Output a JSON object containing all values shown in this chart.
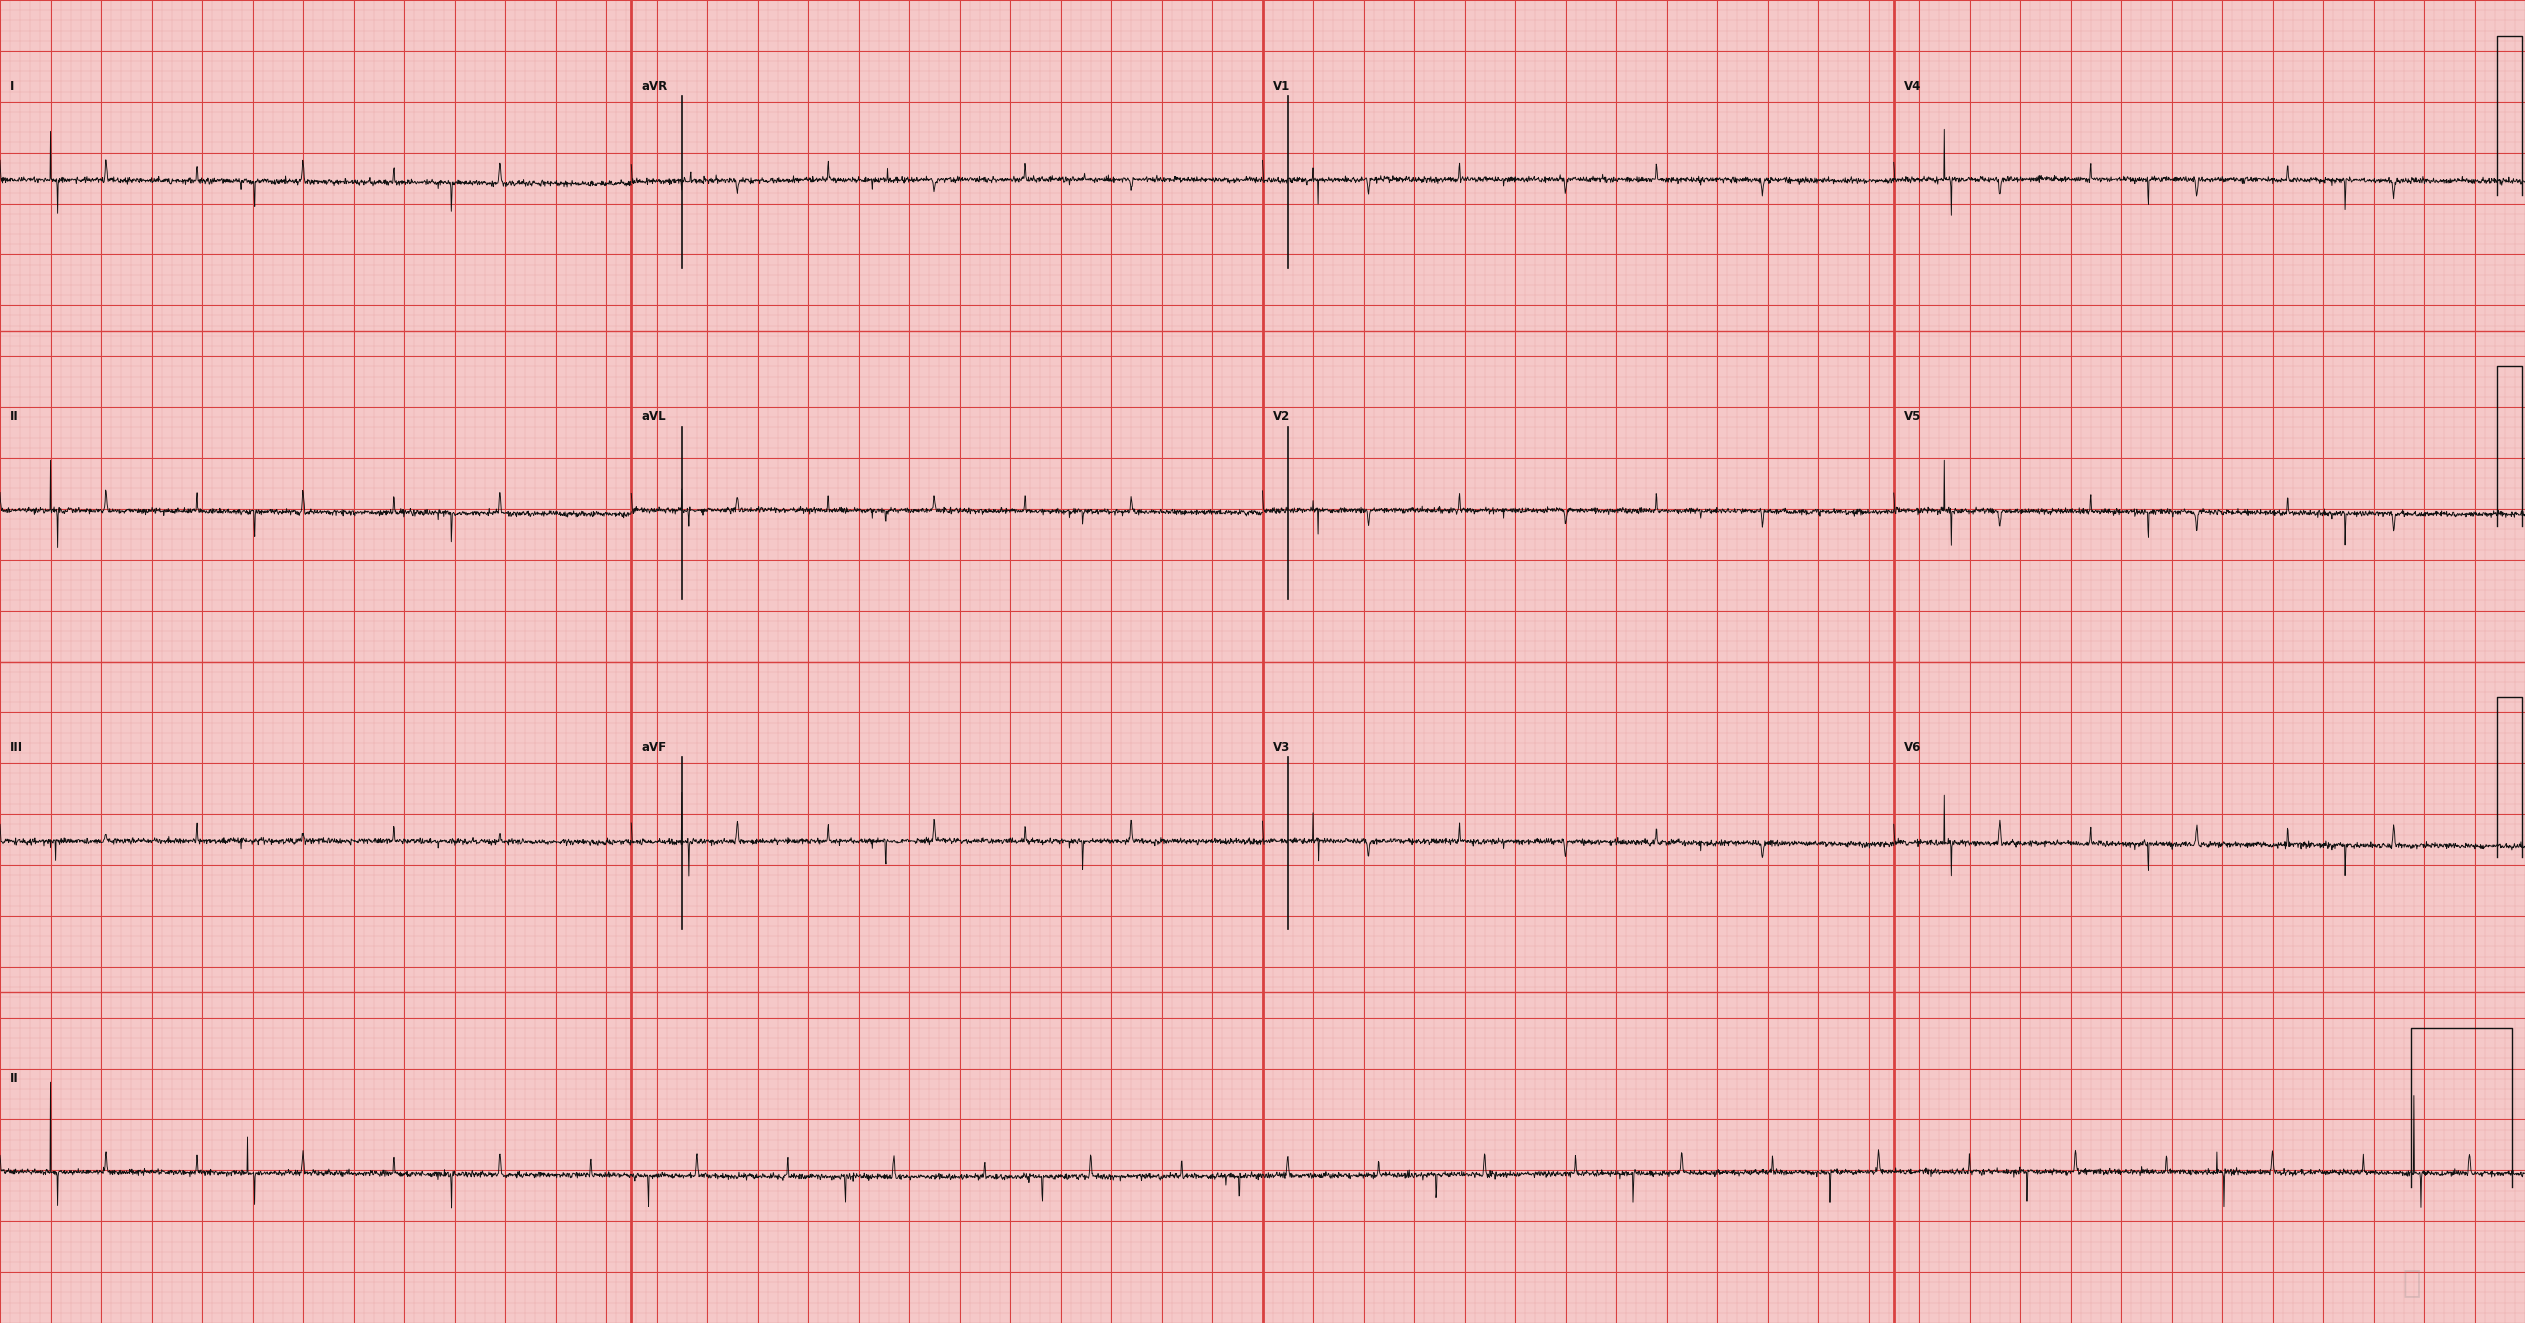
{
  "bg_color": "#f5c8c8",
  "grid_minor_color": "#eaacac",
  "grid_major_color": "#d94040",
  "ecg_color": "#111111",
  "label_color": "#111111",
  "fig_width": 25.25,
  "fig_height": 13.23,
  "dpi": 100,
  "leads_row0": [
    "I",
    "aVR",
    "V1",
    "V4"
  ],
  "leads_row1": [
    "II",
    "aVL",
    "V2",
    "V5"
  ],
  "leads_row2": [
    "III",
    "aVF",
    "V3",
    "V6"
  ],
  "bottom_label": "II",
  "beat_interval": 0.78,
  "hr_scale": 1.0
}
